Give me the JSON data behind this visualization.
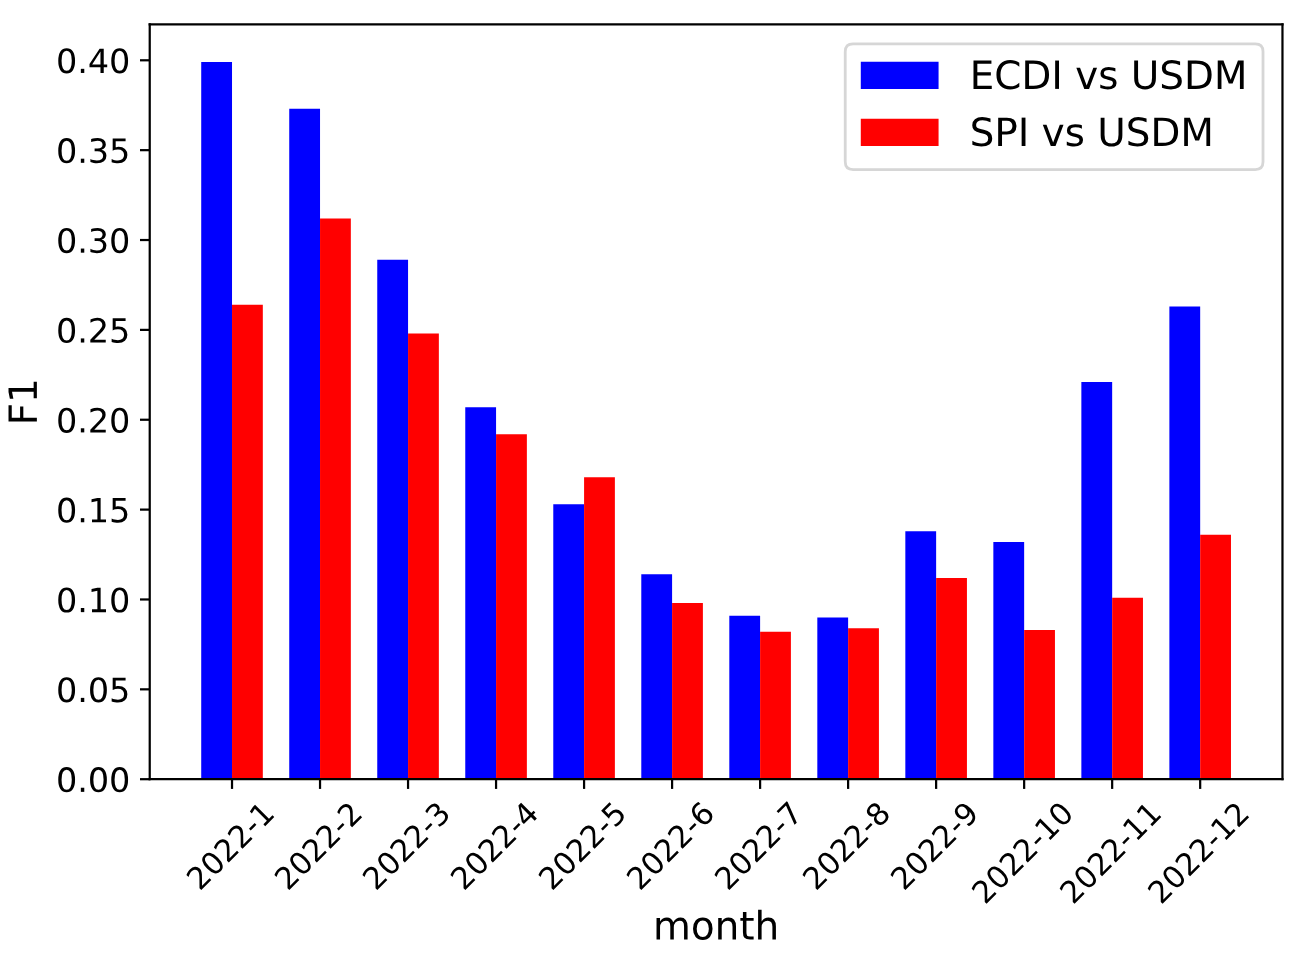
{
  "chart_data": {
    "type": "bar",
    "xlabel": "month",
    "ylabel": "F1",
    "categories": [
      "2022-1",
      "2022-2",
      "2022-3",
      "2022-4",
      "2022-5",
      "2022-6",
      "2022-7",
      "2022-8",
      "2022-9",
      "2022-10",
      "2022-11",
      "2022-12"
    ],
    "series": [
      {
        "name": "ECDI vs USDM",
        "color": "#0000ff",
        "values": [
          0.399,
          0.373,
          0.289,
          0.207,
          0.153,
          0.114,
          0.091,
          0.09,
          0.138,
          0.132,
          0.221,
          0.263
        ]
      },
      {
        "name": "SPI vs USDM",
        "color": "#ff0000",
        "values": [
          0.264,
          0.312,
          0.248,
          0.192,
          0.168,
          0.098,
          0.082,
          0.084,
          0.112,
          0.083,
          0.101,
          0.136
        ]
      }
    ],
    "ylim": [
      0,
      0.42
    ],
    "yticks": [
      {
        "value": 0,
        "label": "0.00"
      },
      {
        "value": 0.05,
        "label": "0.05"
      },
      {
        "value": 0.1,
        "label": "0.10"
      },
      {
        "value": 0.15,
        "label": "0.15"
      },
      {
        "value": 0.2,
        "label": "0.20"
      },
      {
        "value": 0.25,
        "label": "0.25"
      },
      {
        "value": 0.3,
        "label": "0.30"
      },
      {
        "value": 0.35,
        "label": "0.35"
      },
      {
        "value": 0.4,
        "label": "0.40"
      }
    ],
    "grid": false,
    "legend": "top right"
  }
}
